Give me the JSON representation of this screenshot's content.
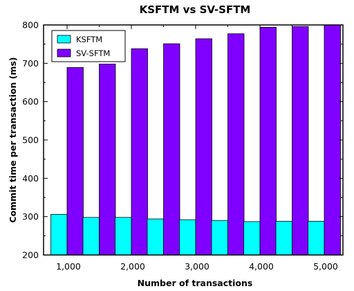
{
  "chart_data": {
    "type": "bar",
    "title": "KSFTM vs SV-SFTM",
    "xlabel": "Number of transactions",
    "ylabel": "Commit time per transaction (ms)",
    "categories": [
      "1,000",
      "1,500",
      "2,000",
      "2,500",
      "3,000",
      "3,500",
      "4,000",
      "4,500",
      "5,000"
    ],
    "x_tick_labels": [
      "1,000",
      "2,000",
      "3,000",
      "4,000",
      "5,000"
    ],
    "y_ticks": [
      200,
      300,
      400,
      500,
      600,
      700,
      800
    ],
    "ylim": [
      200,
      800
    ],
    "series": [
      {
        "name": "KSFTM",
        "color": "#00ffff",
        "values": [
          306,
          298,
          298,
          294,
          292,
          290,
          287,
          288,
          288
        ]
      },
      {
        "name": "SV-SFTM",
        "color": "#7f00ff",
        "values": [
          689,
          698,
          738,
          751,
          764,
          777,
          794,
          796,
          800
        ]
      }
    ],
    "legend_position": "top-left",
    "grid": false
  }
}
